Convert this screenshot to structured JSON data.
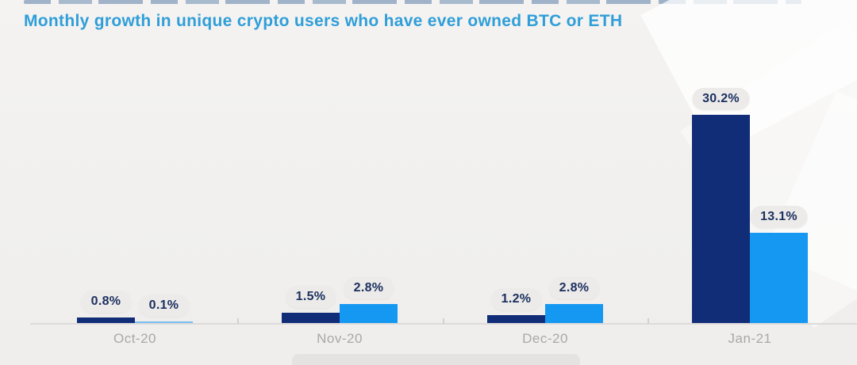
{
  "header": {
    "title": "Monthly growth in unique crypto users who have ever owned BTC or ETH"
  },
  "colors": {
    "title": "#2f9ed9",
    "series1_dark_navy": "#122d78",
    "series2_light_blue": "#1598f2",
    "pill_background": "#ecebe9",
    "pill_text": "#1c3060",
    "axis_label": "#a8a8a6",
    "background": "#f1f0ee"
  },
  "chart_data": {
    "type": "bar",
    "title": "Monthly growth in unique crypto users who have ever owned BTC or ETH",
    "categories": [
      "Oct-20",
      "Nov-20",
      "Dec-20",
      "Jan-21"
    ],
    "series": [
      {
        "name": "dark-navy-series",
        "color": "#122d78",
        "values": [
          0.8,
          1.5,
          1.2,
          30.2
        ]
      },
      {
        "name": "light-blue-series",
        "color": "#1598f2",
        "values": [
          0.1,
          2.8,
          2.8,
          13.1
        ]
      }
    ],
    "labels": [
      [
        "0.8%",
        "0.1%"
      ],
      [
        "1.5%",
        "2.8%"
      ],
      [
        "1.2%",
        "2.8%"
      ],
      [
        "30.2%",
        "13.1%"
      ]
    ],
    "xlabel": "",
    "ylabel": "",
    "ylim": [
      0,
      32
    ],
    "grid": false,
    "legend_position": "clipped-off-bottom"
  }
}
